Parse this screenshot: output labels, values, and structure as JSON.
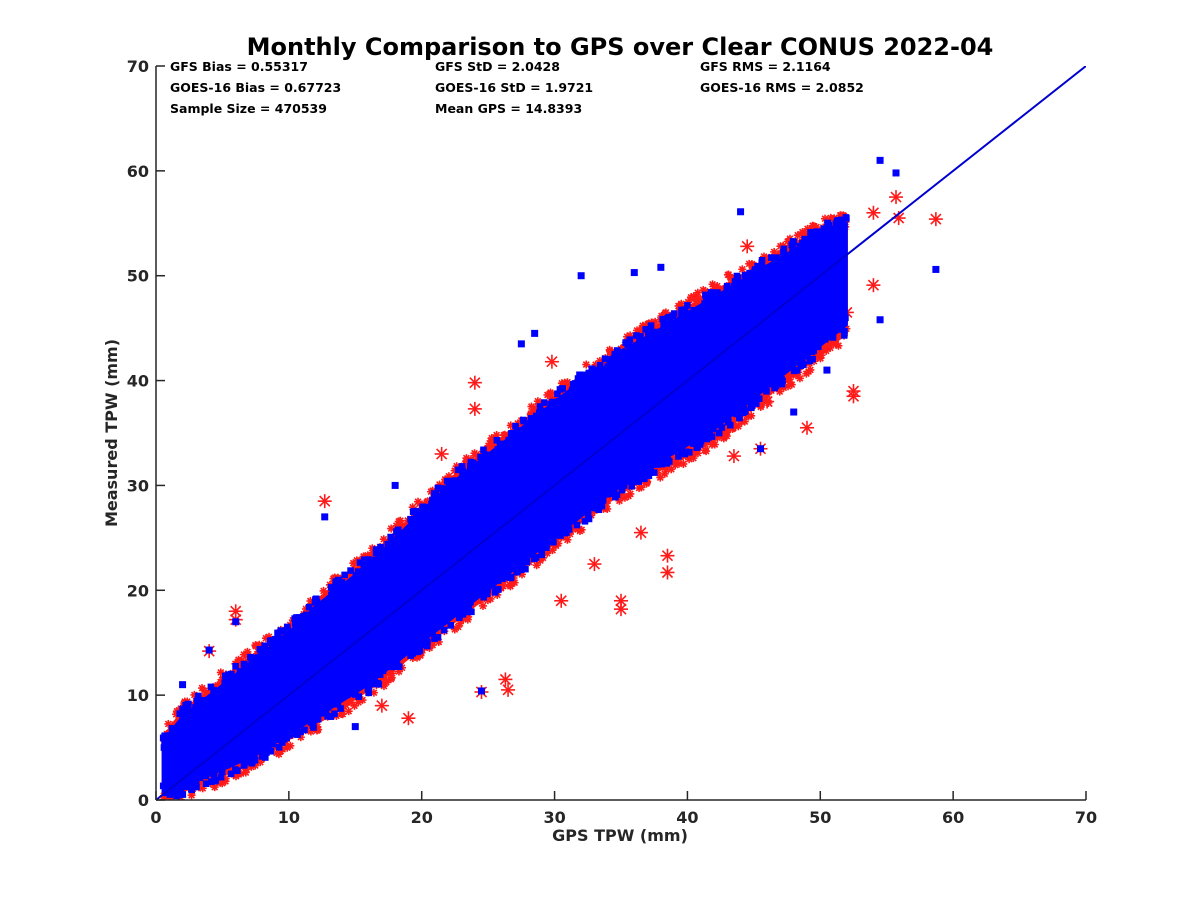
{
  "chart_data": {
    "type": "scatter",
    "title": "Monthly Comparison to GPS over Clear CONUS 2022-04",
    "xlabel": "GPS TPW (mm)",
    "ylabel": "Measured TPW (mm)",
    "xlim": [
      0,
      70
    ],
    "ylim": [
      0,
      70
    ],
    "x_ticks": [
      "0",
      "10",
      "20",
      "30",
      "40",
      "50",
      "60",
      "70"
    ],
    "y_ticks": [
      "0",
      "10",
      "20",
      "30",
      "40",
      "50",
      "60",
      "70"
    ],
    "grid": false,
    "legend": "none",
    "stats": [
      [
        "GFS Bias = 0.55317",
        "GFS StD = 2.0428",
        "GFS RMS = 2.1164"
      ],
      [
        "GOES-16 Bias = 0.67723",
        "GOES-16 StD = 1.9721",
        "GOES-16 RMS = 2.0852"
      ],
      [
        "Sample Size = 470539",
        "Mean GPS = 14.8393",
        ""
      ]
    ],
    "reference_line": {
      "x": [
        0,
        70
      ],
      "y": [
        0,
        70
      ],
      "color": "#0000d0"
    },
    "series": [
      {
        "marker": "asterisk",
        "color": "#ff1a1a",
        "density_envelope": {
          "x": [
            0.5,
            2,
            4,
            6,
            8,
            10,
            12,
            14,
            16,
            18,
            20,
            22,
            24,
            26,
            28,
            30,
            32,
            34,
            36,
            38,
            40,
            42,
            44,
            46,
            48,
            50,
            52
          ],
          "y_low": [
            0.5,
            0.8,
            1.8,
            2.8,
            4.0,
            5.8,
            7.2,
            8.8,
            10.5,
            12.5,
            14.5,
            16.5,
            18.5,
            20.5,
            22.5,
            24.5,
            26.5,
            28.5,
            30.0,
            31.5,
            33.0,
            34.5,
            36.5,
            38.5,
            40.5,
            42.5,
            44.5
          ],
          "y_high": [
            6.0,
            8.5,
            10.5,
            12.5,
            14.5,
            16.5,
            19.0,
            21.0,
            23.0,
            25.5,
            28.0,
            30.5,
            32.5,
            34.5,
            36.5,
            38.5,
            40.5,
            42.0,
            44.0,
            45.5,
            47.0,
            48.5,
            50.0,
            51.5,
            53.0,
            54.5,
            55.5
          ]
        },
        "outliers": [
          [
            12.7,
            28.5
          ],
          [
            6.0,
            18.0
          ],
          [
            6.0,
            17.2
          ],
          [
            4.0,
            14.2
          ],
          [
            24.0,
            39.8
          ],
          [
            24.0,
            37.3
          ],
          [
            29.8,
            41.8
          ],
          [
            21.5,
            33.0
          ],
          [
            30.5,
            19.0
          ],
          [
            35.0,
            19.0
          ],
          [
            35.0,
            18.2
          ],
          [
            38.5,
            21.7
          ],
          [
            38.5,
            23.3
          ],
          [
            45.5,
            33.5
          ],
          [
            49.0,
            35.5
          ],
          [
            44.5,
            52.8
          ],
          [
            54.0,
            56.0
          ],
          [
            55.7,
            57.5
          ],
          [
            55.9,
            55.5
          ],
          [
            58.7,
            55.4
          ],
          [
            54.0,
            49.1
          ],
          [
            52.5,
            39.0
          ],
          [
            52.5,
            38.5
          ],
          [
            52.0,
            46.5
          ],
          [
            19.0,
            7.8
          ],
          [
            26.5,
            10.5
          ],
          [
            26.3,
            11.5
          ],
          [
            24.5,
            10.3
          ],
          [
            17.0,
            9.0
          ],
          [
            43.5,
            32.8
          ],
          [
            46.0,
            38.0
          ],
          [
            36.5,
            25.5
          ],
          [
            33.0,
            22.5
          ]
        ]
      },
      {
        "marker": "square",
        "color": "#0000ff",
        "density_envelope": {
          "x": [
            0.5,
            2,
            4,
            6,
            8,
            10,
            12,
            14,
            16,
            18,
            20,
            22,
            24,
            26,
            28,
            30,
            32,
            34,
            36,
            38,
            40,
            42,
            44,
            46,
            48,
            50,
            52
          ],
          "y_low": [
            0.8,
            1.2,
            2.3,
            3.4,
            4.6,
            6.3,
            7.8,
            9.4,
            11.0,
            13.0,
            15.0,
            17.0,
            19.0,
            21.0,
            23.0,
            25.0,
            27.0,
            29.0,
            30.8,
            32.3,
            33.8,
            35.3,
            37.3,
            39.3,
            41.3,
            43.3,
            45.3
          ],
          "y_high": [
            5.6,
            8.0,
            10.0,
            12.0,
            14.0,
            16.0,
            18.5,
            20.5,
            22.5,
            25.0,
            27.5,
            30.0,
            32.0,
            34.0,
            36.0,
            38.0,
            40.0,
            41.5,
            43.5,
            45.0,
            46.5,
            48.0,
            49.5,
            51.0,
            52.5,
            54.0,
            55.0
          ]
        },
        "outliers": [
          [
            54.5,
            61.0
          ],
          [
            55.7,
            59.8
          ],
          [
            58.7,
            50.6
          ],
          [
            54.5,
            45.8
          ],
          [
            44.0,
            56.1
          ],
          [
            32.0,
            50.0
          ],
          [
            36.0,
            50.3
          ],
          [
            38.0,
            50.8
          ],
          [
            45.5,
            33.5
          ],
          [
            24.5,
            10.4
          ],
          [
            12.7,
            27.0
          ],
          [
            15.0,
            7.0
          ],
          [
            2.0,
            11.0
          ],
          [
            4.0,
            14.3
          ],
          [
            6.0,
            17.0
          ],
          [
            28.5,
            44.5
          ],
          [
            27.5,
            43.5
          ],
          [
            48.0,
            37.0
          ],
          [
            50.5,
            41.0
          ],
          [
            18.0,
            30.0
          ]
        ]
      }
    ]
  }
}
